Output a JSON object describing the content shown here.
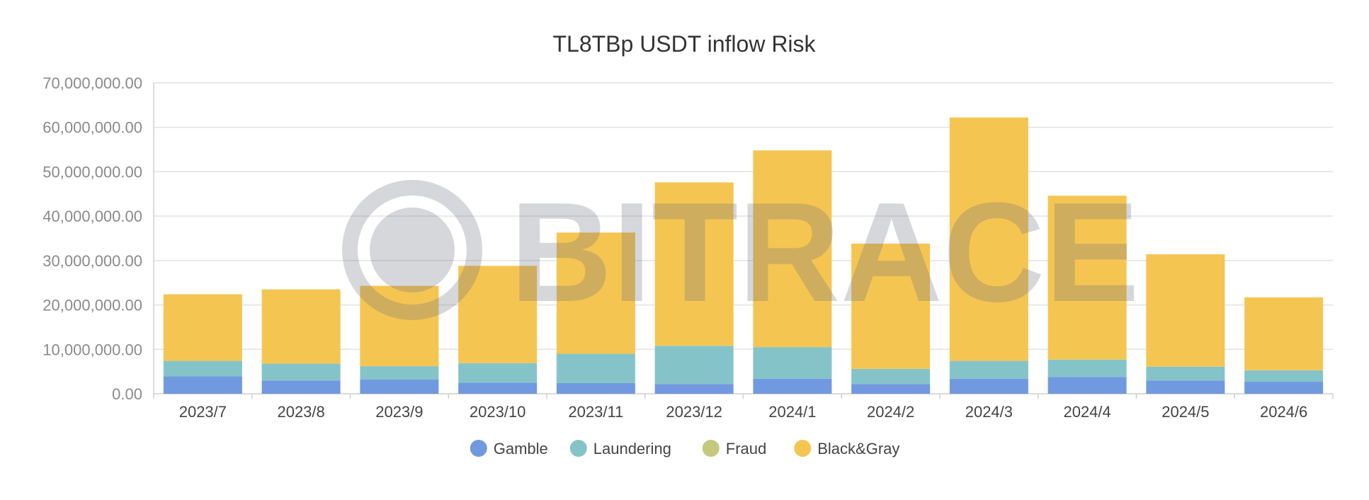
{
  "chart_data": {
    "type": "bar",
    "stacked": true,
    "title": "TL8TBp USDT inflow Risk",
    "xlabel": "",
    "ylabel": "",
    "categories": [
      "2023/7",
      "2023/8",
      "2023/9",
      "2023/10",
      "2023/11",
      "2023/12",
      "2024/1",
      "2024/2",
      "2024/3",
      "2024/4",
      "2024/5",
      "2024/6"
    ],
    "ylim": [
      0,
      70000000
    ],
    "yticks": [
      "0.00",
      "10,000,000.00",
      "20,000,000.00",
      "30,000,000.00",
      "40,000,000.00",
      "50,000,000.00",
      "60,000,000.00",
      "70,000,000.00"
    ],
    "grid": true,
    "legend_position": "bottom",
    "series": [
      {
        "name": "Gamble",
        "color": "#7199e0",
        "values": [
          3900000,
          3000000,
          3200000,
          2500000,
          2400000,
          2200000,
          3400000,
          2200000,
          3400000,
          3800000,
          3000000,
          2700000
        ]
      },
      {
        "name": "Laundering",
        "color": "#84c4c9",
        "values": [
          3500000,
          3800000,
          3000000,
          4400000,
          6600000,
          8600000,
          7100000,
          3400000,
          4000000,
          3900000,
          3100000,
          2600000
        ]
      },
      {
        "name": "Fraud",
        "color": "#c4c97e",
        "values": [
          0,
          0,
          0,
          0,
          0,
          0,
          0,
          0,
          0,
          0,
          0,
          0
        ]
      },
      {
        "name": "Black&Gray",
        "color": "#f5c552",
        "values": [
          15000000,
          16700000,
          18100000,
          21900000,
          27300000,
          36800000,
          44300000,
          28200000,
          54800000,
          36900000,
          25300000,
          16400000
        ]
      }
    ]
  },
  "watermark": {
    "text": "BITRACE",
    "icon": "bitrace-logo-icon"
  }
}
